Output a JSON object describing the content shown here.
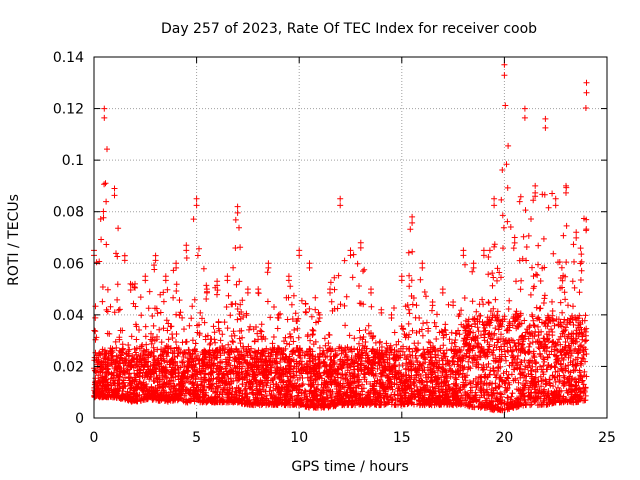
{
  "chart_data": {
    "type": "scatter",
    "title": "Day 257 of 2023, Rate Of TEC Index for receiver coob",
    "xlabel": "GPS time / hours",
    "ylabel": "ROTI / TECUs",
    "xlim": [
      0,
      25
    ],
    "ylim": [
      0,
      0.14
    ],
    "xticks": [
      "0",
      "5",
      "10",
      "15",
      "20",
      "25"
    ],
    "yticks": [
      "0",
      "0.02",
      "0.04",
      "0.06",
      "0.08",
      "0.1",
      "0.12",
      "0.14"
    ],
    "grid": true,
    "marker": "plus",
    "color": "#ff0000",
    "series": [
      {
        "name": "ROTI",
        "envelope_hours": [
          0,
          0.5,
          1,
          1.5,
          2,
          2.5,
          3,
          3.5,
          4,
          4.5,
          5,
          5.5,
          6,
          6.5,
          7,
          7.5,
          8,
          8.5,
          9,
          9.5,
          10,
          10.5,
          11,
          11.5,
          12,
          12.5,
          13,
          13.5,
          14,
          14.5,
          15,
          15.5,
          16,
          16.5,
          17,
          17.5,
          18,
          18.5,
          19,
          19.5,
          20,
          20.5,
          21,
          21.5,
          22,
          22.5,
          23,
          23.5,
          24
        ],
        "envelope_max": [
          0.065,
          0.12,
          0.089,
          0.063,
          0.052,
          0.055,
          0.063,
          0.055,
          0.06,
          0.067,
          0.085,
          0.05,
          0.053,
          0.055,
          0.082,
          0.05,
          0.05,
          0.06,
          0.04,
          0.055,
          0.065,
          0.06,
          0.04,
          0.05,
          0.085,
          0.065,
          0.068,
          0.05,
          0.042,
          0.04,
          0.055,
          0.078,
          0.06,
          0.045,
          0.05,
          0.045,
          0.065,
          0.06,
          0.065,
          0.085,
          0.137,
          0.07,
          0.12,
          0.09,
          0.116,
          0.085,
          0.09,
          0.072,
          0.13
        ],
        "envelope_min": [
          0.008,
          0.008,
          0.008,
          0.007,
          0.006,
          0.007,
          0.007,
          0.006,
          0.007,
          0.006,
          0.006,
          0.006,
          0.006,
          0.006,
          0.006,
          0.005,
          0.005,
          0.005,
          0.005,
          0.005,
          0.005,
          0.004,
          0.004,
          0.004,
          0.005,
          0.005,
          0.005,
          0.005,
          0.005,
          0.005,
          0.005,
          0.005,
          0.005,
          0.005,
          0.005,
          0.005,
          0.005,
          0.004,
          0.004,
          0.003,
          0.003,
          0.004,
          0.005,
          0.005,
          0.005,
          0.006,
          0.006,
          0.006,
          0.007
        ],
        "typical_level": 0.017
      }
    ]
  }
}
